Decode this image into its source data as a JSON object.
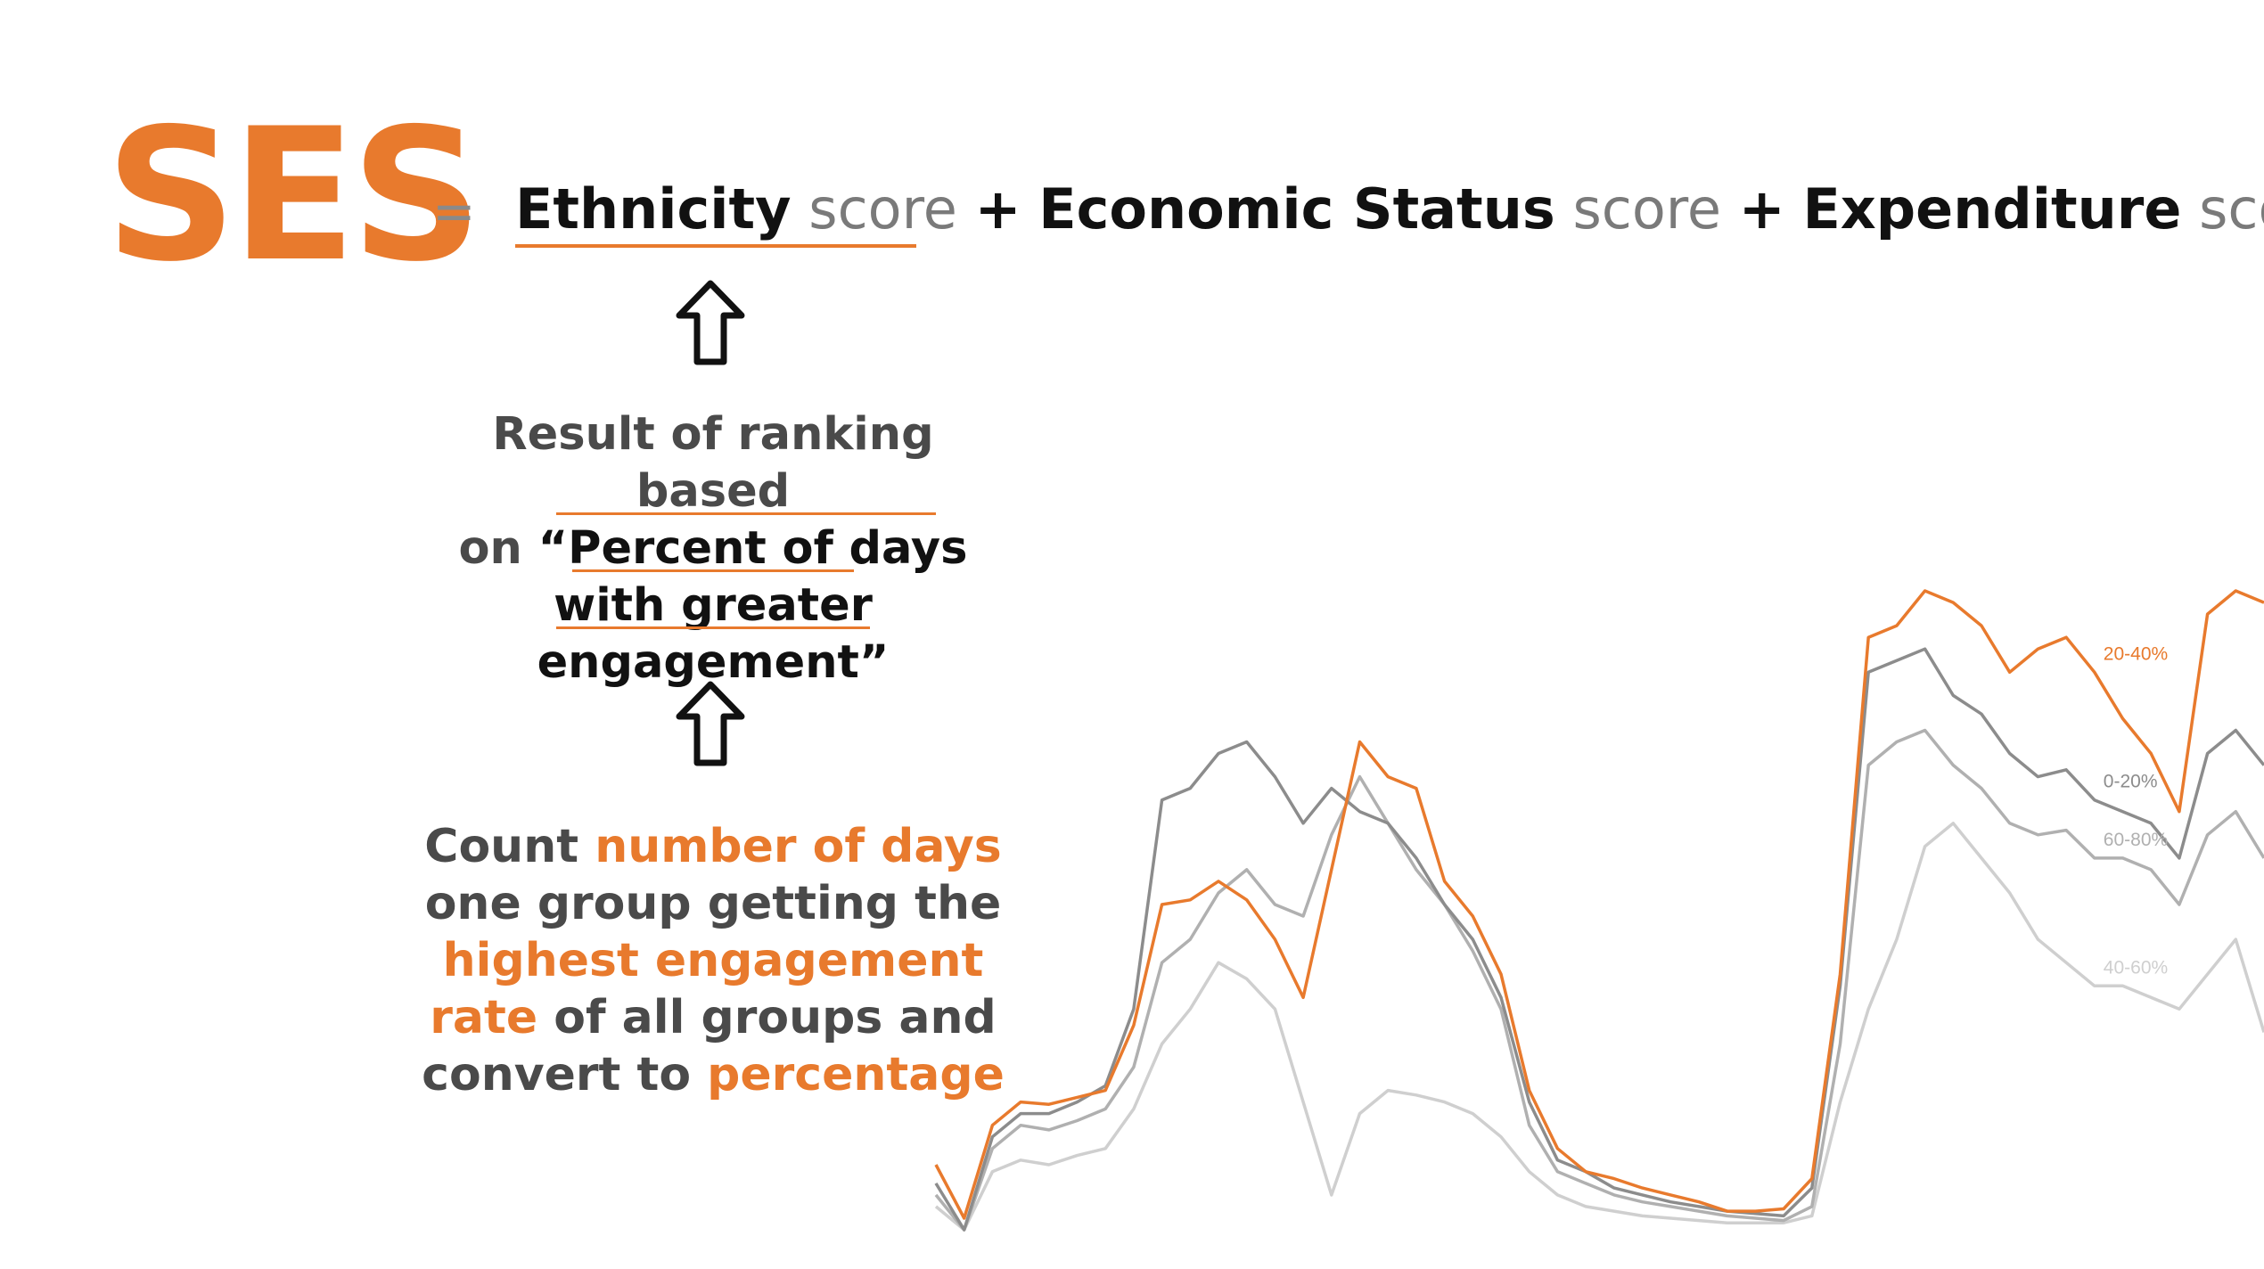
{
  "title": "SES",
  "equals": "=",
  "formula": {
    "term1": "Ethnicity",
    "score1": "score",
    "plus1": "+",
    "term2": "Economic Status",
    "score2": "score",
    "plus2": "+",
    "term3": "Expenditure",
    "score3": "score"
  },
  "ranking": {
    "line1": "Result of ranking based",
    "line2_prefix": "on",
    "line2_highlight": "“Percent of days",
    "line3": "with greater",
    "line4": "engagement”"
  },
  "count": {
    "l1_a": "Count",
    "l1_b": "number of days",
    "l2": "one group getting the",
    "l3": "highest engagement",
    "l4_a": "rate",
    "l4_b": "of all groups and",
    "l5_a": "convert to",
    "l5_b": "percentage"
  },
  "colors": {
    "accent": "#e87a2d",
    "dark": "#111111",
    "grey_text": "#4a4a4a"
  },
  "chart_data": {
    "type": "line",
    "x": [
      0,
      1,
      2,
      3,
      4,
      5,
      6,
      7,
      8,
      9,
      10,
      11,
      12,
      13,
      14,
      15,
      16,
      17,
      18,
      19,
      20,
      21,
      22,
      23,
      24,
      25,
      26,
      27,
      28,
      29,
      30,
      31,
      32,
      33,
      34,
      35,
      36,
      37,
      38,
      39,
      40,
      41,
      42,
      43,
      44,
      45,
      46,
      47
    ],
    "series": [
      {
        "name": "20-40%",
        "color": "#e87a2d",
        "values": [
          28,
          5,
          45,
          55,
          54,
          57,
          60,
          88,
          140,
          142,
          150,
          142,
          125,
          100,
          155,
          210,
          195,
          190,
          150,
          135,
          110,
          60,
          35,
          25,
          22,
          18,
          15,
          12,
          8,
          8,
          9,
          22,
          110,
          255,
          260,
          275,
          270,
          260,
          240,
          250,
          255,
          240,
          220,
          205,
          180,
          265,
          275,
          270
        ]
      },
      {
        "name": "0-20%",
        "color": "#8c8c8c",
        "values": [
          20,
          0,
          40,
          50,
          50,
          55,
          62,
          95,
          185,
          190,
          205,
          210,
          195,
          175,
          190,
          180,
          175,
          160,
          140,
          125,
          100,
          55,
          30,
          25,
          18,
          15,
          12,
          10,
          8,
          7,
          6,
          18,
          105,
          240,
          245,
          250,
          230,
          222,
          205,
          195,
          198,
          185,
          180,
          175,
          160,
          205,
          215,
          200
        ]
      },
      {
        "name": "60-80%",
        "color": "#b0b0b0",
        "values": [
          15,
          0,
          35,
          45,
          43,
          47,
          52,
          70,
          115,
          125,
          145,
          155,
          140,
          135,
          170,
          195,
          175,
          155,
          140,
          120,
          95,
          45,
          25,
          20,
          15,
          12,
          10,
          8,
          6,
          5,
          4,
          10,
          80,
          200,
          210,
          215,
          200,
          190,
          175,
          170,
          172,
          160,
          160,
          155,
          140,
          170,
          180,
          160
        ]
      },
      {
        "name": "40-60%",
        "color": "#cfcfcf",
        "values": [
          10,
          0,
          25,
          30,
          28,
          32,
          35,
          52,
          80,
          95,
          115,
          108,
          95,
          55,
          15,
          50,
          60,
          58,
          55,
          50,
          40,
          25,
          15,
          10,
          8,
          6,
          5,
          4,
          3,
          3,
          3,
          6,
          55,
          95,
          125,
          165,
          175,
          160,
          145,
          125,
          115,
          105,
          105,
          100,
          95,
          110,
          125,
          85
        ]
      }
    ],
    "grid": false,
    "legend": "right, inline labels"
  }
}
